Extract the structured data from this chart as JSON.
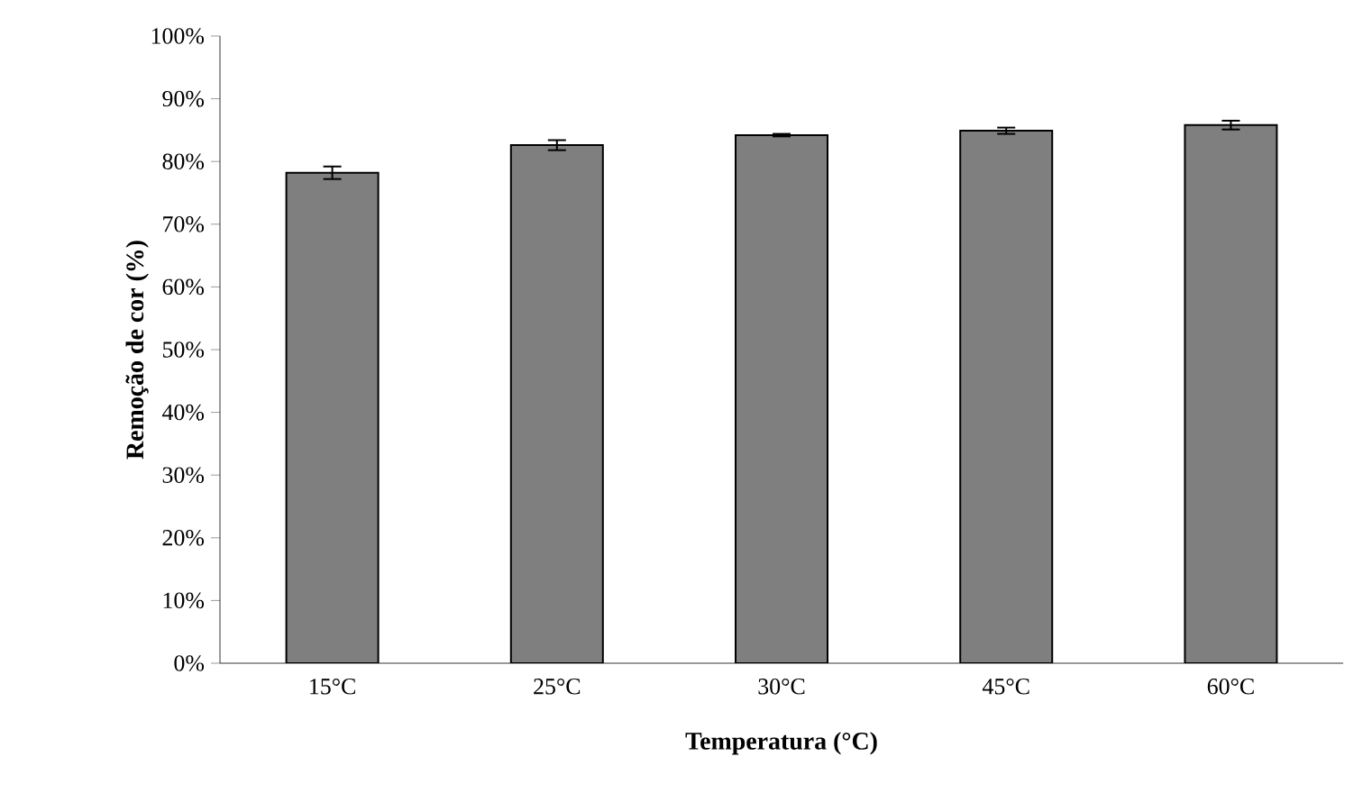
{
  "chart_data": {
    "type": "bar",
    "xlabel": "Temperatura (°C)",
    "ylabel": "Remoção de cor (%)",
    "categories": [
      "15°C",
      "25°C",
      "30°C",
      "45°C",
      "60°C"
    ],
    "values": [
      78.2,
      82.6,
      84.2,
      84.9,
      85.8
    ],
    "errors": [
      1.0,
      0.8,
      0.2,
      0.5,
      0.7
    ],
    "color": "#7f7f7f",
    "ylim": [
      0,
      100
    ],
    "yticks": [
      {
        "value": 0,
        "label": "0%"
      },
      {
        "value": 10,
        "label": "10%"
      },
      {
        "value": 20,
        "label": "20%"
      },
      {
        "value": 30,
        "label": "30%"
      },
      {
        "value": 40,
        "label": "40%"
      },
      {
        "value": 50,
        "label": "50%"
      },
      {
        "value": 60,
        "label": "60%"
      },
      {
        "value": 70,
        "label": "70%"
      },
      {
        "value": 80,
        "label": "80%"
      },
      {
        "value": 90,
        "label": "90%"
      },
      {
        "value": 100,
        "label": "100%"
      }
    ],
    "grid": false
  }
}
